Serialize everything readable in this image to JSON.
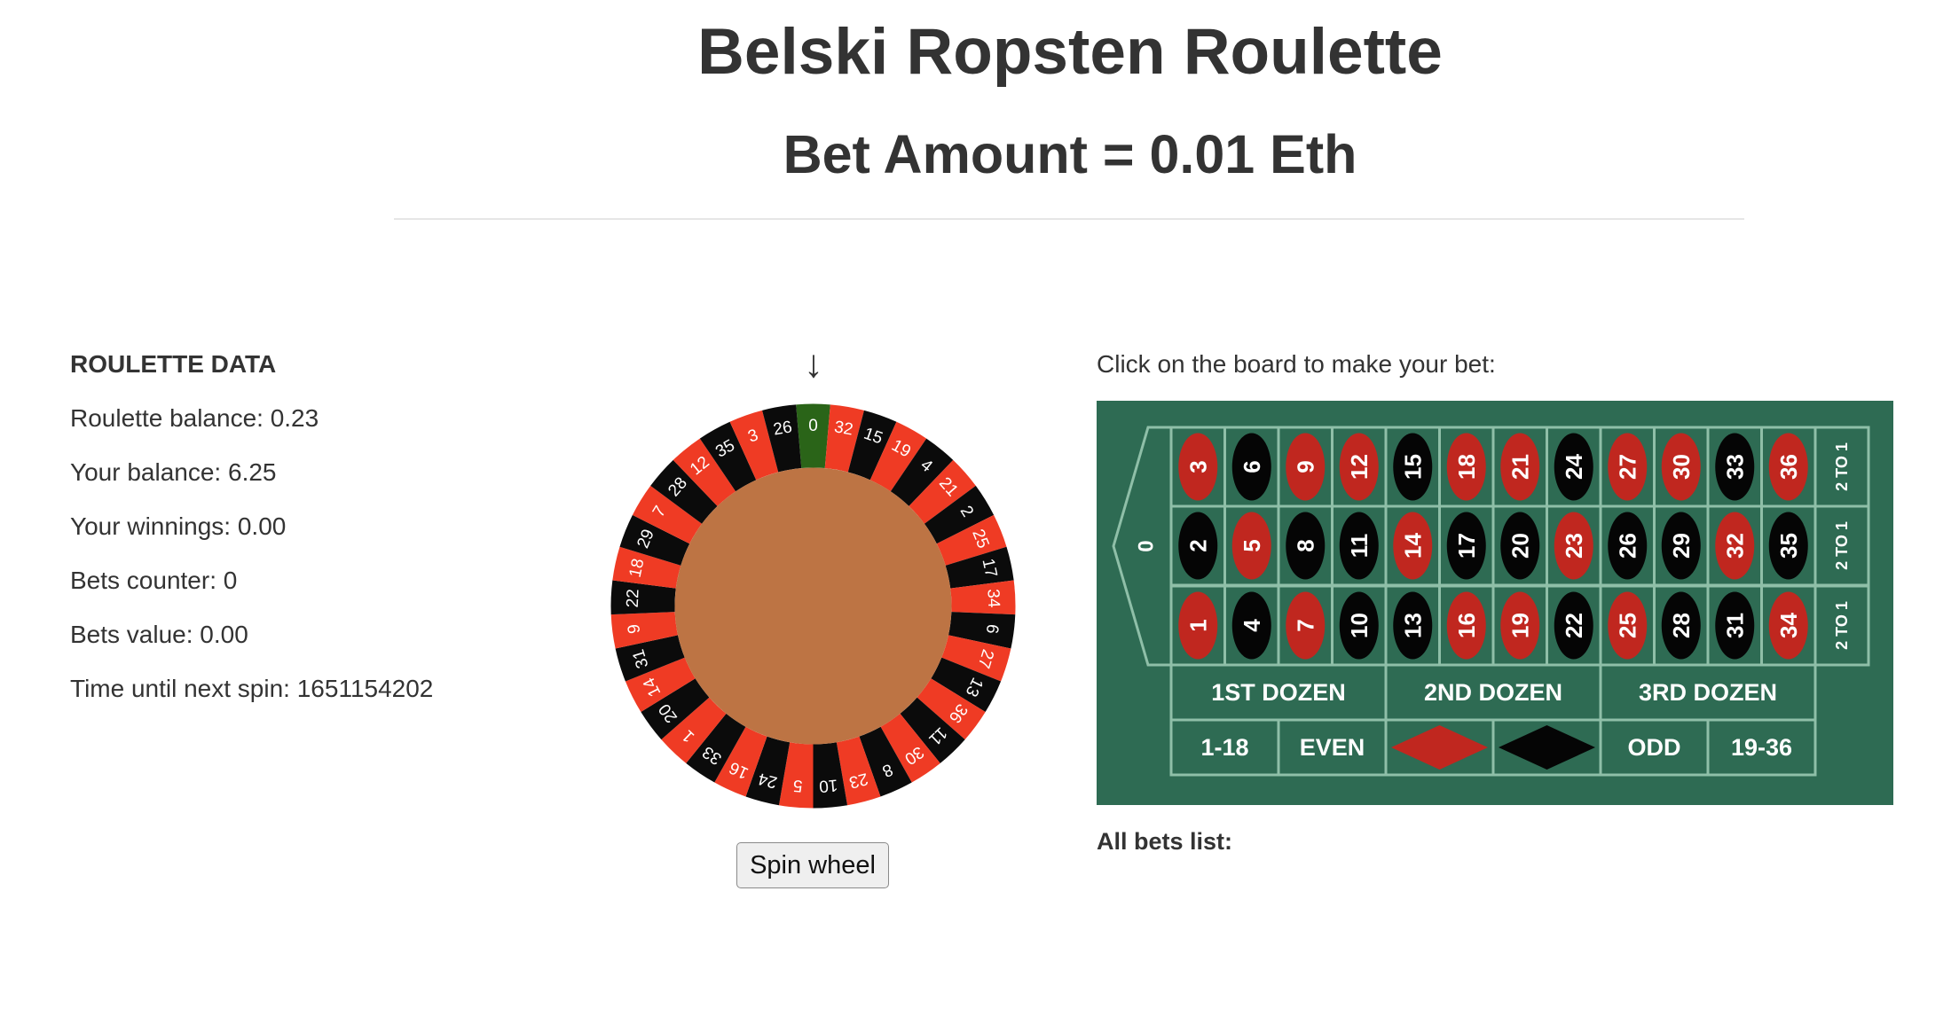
{
  "header": {
    "title": "Belski Ropsten Roulette",
    "bet_amount": "Bet Amount = 0.01 Eth"
  },
  "roulette_data": {
    "heading": "ROULETTE DATA",
    "roulette_balance": "Roulette balance: 0.23",
    "your_balance": "Your balance: 6.25",
    "your_winnings": "Your winnings: 0.00",
    "bets_counter": "Bets counter: 0",
    "bets_value": "Bets value: 0.00",
    "time_until_next_spin": "Time until next spin: 1651154202"
  },
  "wheel": {
    "pointer": "↓",
    "sequence": [
      "0",
      "32",
      "15",
      "19",
      "4",
      "21",
      "2",
      "25",
      "17",
      "34",
      "6",
      "27",
      "13",
      "36",
      "11",
      "30",
      "8",
      "23",
      "10",
      "5",
      "24",
      "16",
      "33",
      "1",
      "20",
      "14",
      "31",
      "9",
      "22",
      "18",
      "29",
      "7",
      "28",
      "12",
      "35",
      "3",
      "26"
    ],
    "red_numbers": [
      "1",
      "3",
      "5",
      "7",
      "9",
      "12",
      "14",
      "16",
      "18",
      "19",
      "21",
      "23",
      "25",
      "27",
      "30",
      "32",
      "34",
      "36"
    ],
    "colors": {
      "red": "#ef3b24",
      "black": "#0b0b0b",
      "green": "#2a6418",
      "center": "#bd7444",
      "rim": "#ffffff"
    },
    "spin_label": "Spin wheel"
  },
  "board": {
    "instruction": "Click on the board to make your bet:",
    "zero": "0",
    "rows": [
      [
        "3",
        "6",
        "9",
        "12",
        "15",
        "18",
        "21",
        "24",
        "27",
        "30",
        "33",
        "36"
      ],
      [
        "2",
        "5",
        "8",
        "11",
        "14",
        "17",
        "20",
        "23",
        "26",
        "29",
        "32",
        "35"
      ],
      [
        "1",
        "4",
        "7",
        "10",
        "13",
        "16",
        "19",
        "22",
        "25",
        "28",
        "31",
        "34"
      ]
    ],
    "columns": [
      "2 TO 1",
      "2 TO 1",
      "2 TO 1"
    ],
    "dozens": [
      "1ST DOZEN",
      "2ND DOZEN",
      "3RD DOZEN"
    ],
    "outside": [
      "1-18",
      "EVEN",
      "RED",
      "BLACK",
      "ODD",
      "19-36"
    ],
    "colors": {
      "felt": "#2e6b53",
      "line": "#8fbfa8",
      "red": "#c0271f",
      "black": "#050505",
      "text": "#ffffff"
    }
  },
  "bets_list": {
    "title": "All bets list:"
  }
}
